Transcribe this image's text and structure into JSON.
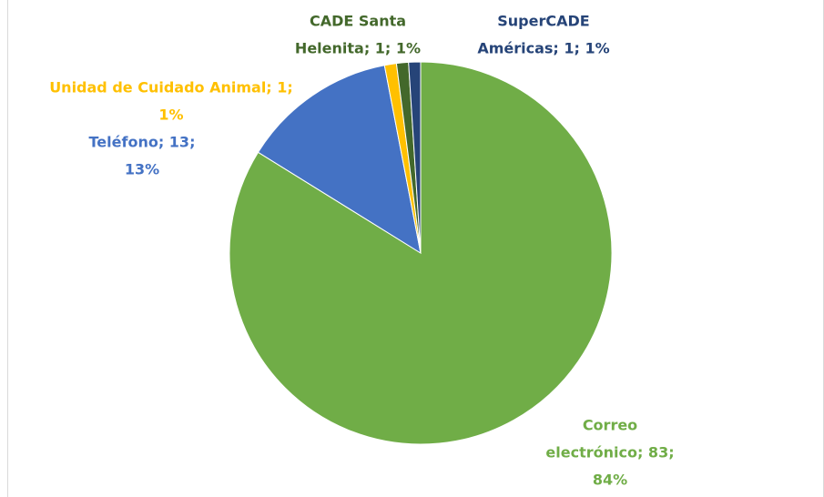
{
  "chart_data": {
    "type": "pie",
    "values": [
      83,
      13,
      1,
      1,
      1
    ],
    "colors": [
      "#70ad47",
      "#4472c4",
      "#ffc000",
      "#43682b",
      "#264478"
    ],
    "value_labels": [
      [
        "Correo",
        "electrónico; 83;",
        "84%"
      ],
      [
        "Teléfono; 13;",
        "13%"
      ],
      [
        "Unidad de Cuidado Animal; 1;",
        "1%"
      ],
      [
        "CADE Santa",
        "Helenita; 1; 1%"
      ],
      [
        "SuperCADE",
        "Américas; 1; 1%"
      ]
    ]
  }
}
